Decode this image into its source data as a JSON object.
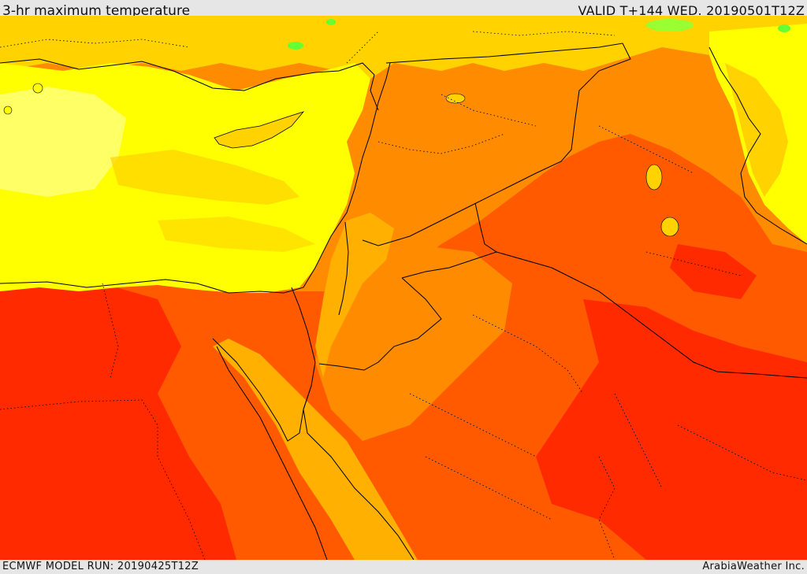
{
  "header": {
    "title": "3-hr maximum temperature",
    "valid": "VALID T+144 WED. 20190501T12Z"
  },
  "footer": {
    "model_run": "ECMWF MODEL RUN: 20190425T12Z",
    "credit": "ArabiaWeather Inc."
  },
  "palette": {
    "cool_green": "#66ff33",
    "pale_yellow": "#ffff66",
    "yellow": "#ffff00",
    "gold": "#ffd200",
    "amber": "#ffb000",
    "orange": "#ff8c00",
    "red_orange": "#ff5a00",
    "red": "#ff2a00",
    "border_line": "#000000"
  }
}
